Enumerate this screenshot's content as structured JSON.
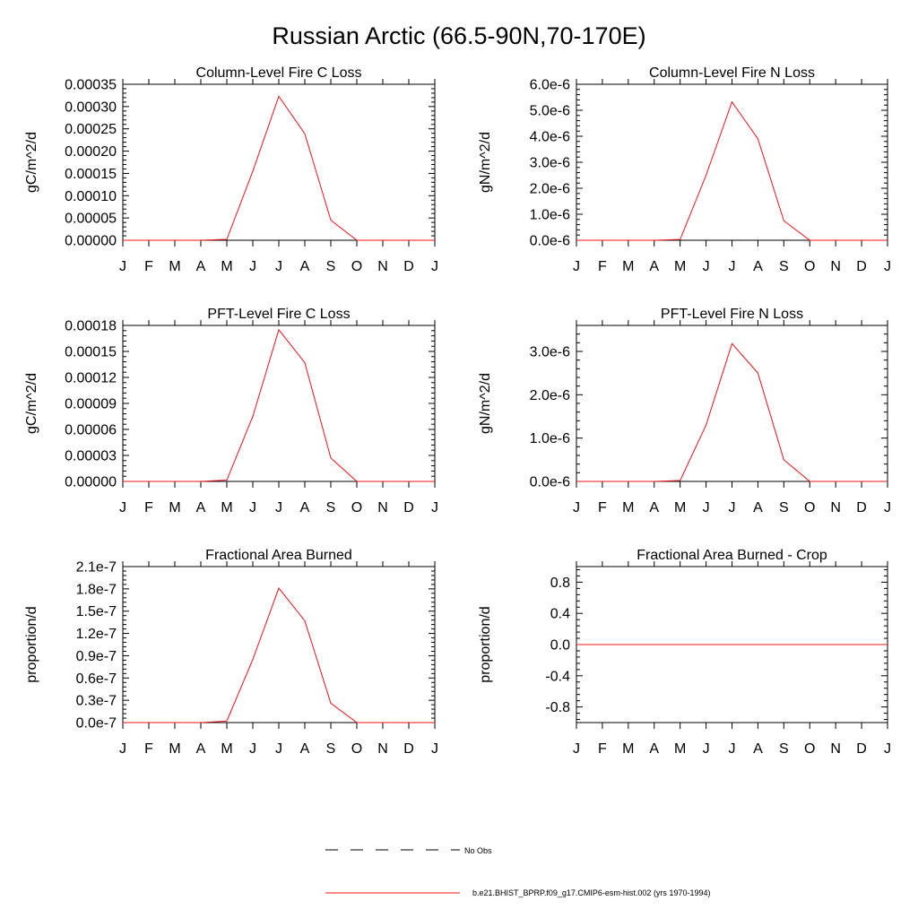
{
  "figure_title": "Russian Arctic (66.5-90N,70-170E)",
  "colors": {
    "series": "#e8141a",
    "axis": "#000000",
    "background": "#ffffff"
  },
  "legend": {
    "entries": [
      {
        "label": "No Obs",
        "style": "dashed",
        "color": "#000000"
      },
      {
        "label": "b.e21.BHIST_BPRP.f09_g17.CMIP6-esm-hist.002 (yrs 1970-1994)",
        "style": "solid",
        "color": "#e8141a"
      }
    ]
  },
  "chart_data": [
    {
      "type": "line",
      "title": "Column-Level Fire C Loss",
      "xlabel": "",
      "ylabel": "gC/m^2/d",
      "categories": [
        "J",
        "F",
        "M",
        "A",
        "M",
        "J",
        "J",
        "A",
        "S",
        "O",
        "N",
        "D",
        "J"
      ],
      "ylim": [
        0,
        0.00035
      ],
      "yticks": [
        0,
        5e-05,
        0.0001,
        0.00015,
        0.0002,
        0.00025,
        0.0003,
        0.00035
      ],
      "ytick_labels": [
        "0.00000",
        "0.00005",
        "0.00010",
        "0.00015",
        "0.00020",
        "0.00025",
        "0.00030",
        "0.00035"
      ],
      "series": [
        {
          "name": "b.e21.BHIST_BPRP.f09_g17.CMIP6-esm-hist.002 (yrs 1970-1994)",
          "values": [
            0,
            0,
            0,
            0,
            2e-06,
            0.000155,
            0.000323,
            0.000239,
            4.5e-05,
            0,
            0,
            0,
            0
          ]
        }
      ]
    },
    {
      "type": "line",
      "title": "Column-Level Fire N Loss",
      "xlabel": "",
      "ylabel": "gN/m^2/d",
      "categories": [
        "J",
        "F",
        "M",
        "A",
        "M",
        "J",
        "J",
        "A",
        "S",
        "O",
        "N",
        "D",
        "J"
      ],
      "ylim": [
        0,
        6e-06
      ],
      "yticks": [
        0,
        1e-06,
        2e-06,
        3e-06,
        4e-06,
        5e-06,
        6e-06
      ],
      "ytick_labels": [
        "0.0e-6",
        "1.0e-6",
        "2.0e-6",
        "3.0e-6",
        "4.0e-6",
        "5.0e-6",
        "6.0e-6"
      ],
      "series": [
        {
          "name": "b.e21.BHIST_BPRP.f09_g17.CMIP6-esm-hist.002 (yrs 1970-1994)",
          "values": [
            0,
            0,
            0,
            0,
            3e-08,
            2.5e-06,
            5.32e-06,
            3.9e-06,
            7.5e-07,
            0,
            0,
            0,
            0
          ]
        }
      ]
    },
    {
      "type": "line",
      "title": "PFT-Level Fire C Loss",
      "xlabel": "",
      "ylabel": "gC/m^2/d",
      "categories": [
        "J",
        "F",
        "M",
        "A",
        "M",
        "J",
        "J",
        "A",
        "S",
        "O",
        "N",
        "D",
        "J"
      ],
      "ylim": [
        0,
        0.00018
      ],
      "yticks": [
        0,
        3e-05,
        6e-05,
        9e-05,
        0.00012,
        0.00015,
        0.00018
      ],
      "ytick_labels": [
        "0.00000",
        "0.00003",
        "0.00006",
        "0.00009",
        "0.00012",
        "0.00015",
        "0.00018"
      ],
      "series": [
        {
          "name": "b.e21.BHIST_BPRP.f09_g17.CMIP6-esm-hist.002 (yrs 1970-1994)",
          "values": [
            0,
            0,
            0,
            0,
            1.5e-06,
            7.5e-05,
            0.000175,
            0.000137,
            2.7e-05,
            0,
            0,
            0,
            0
          ]
        }
      ]
    },
    {
      "type": "line",
      "title": "PFT-Level Fire N Loss",
      "xlabel": "",
      "ylabel": "gN/m^2/d",
      "categories": [
        "J",
        "F",
        "M",
        "A",
        "M",
        "J",
        "J",
        "A",
        "S",
        "O",
        "N",
        "D",
        "J"
      ],
      "ylim": [
        0,
        3.6e-06
      ],
      "yticks": [
        0,
        1e-06,
        2e-06,
        3e-06
      ],
      "ytick_labels": [
        "0.0e-6",
        "1.0e-6",
        "2.0e-6",
        "3.0e-6"
      ],
      "series": [
        {
          "name": "b.e21.BHIST_BPRP.f09_g17.CMIP6-esm-hist.002 (yrs 1970-1994)",
          "values": [
            0,
            0,
            0,
            0,
            2e-08,
            1.3e-06,
            3.18e-06,
            2.5e-06,
            5e-07,
            0,
            0,
            0,
            0
          ]
        }
      ]
    },
    {
      "type": "line",
      "title": "Fractional Area Burned",
      "xlabel": "",
      "ylabel": "proportion/d",
      "categories": [
        "J",
        "F",
        "M",
        "A",
        "M",
        "J",
        "J",
        "A",
        "S",
        "O",
        "N",
        "D",
        "J"
      ],
      "ylim": [
        0,
        2.1e-07
      ],
      "yticks": [
        0,
        3e-08,
        6e-08,
        9e-08,
        1.2e-07,
        1.5e-07,
        1.8e-07,
        2.1e-07
      ],
      "ytick_labels": [
        "0.0e-7",
        "0.3e-7",
        "0.6e-7",
        "0.9e-7",
        "1.2e-7",
        "1.5e-7",
        "1.8e-7",
        "2.1e-7"
      ],
      "series": [
        {
          "name": "b.e21.BHIST_BPRP.f09_g17.CMIP6-esm-hist.002 (yrs 1970-1994)",
          "values": [
            0,
            0,
            0,
            0,
            2e-09,
            8.5e-08,
            1.81e-07,
            1.37e-07,
            2.6e-08,
            0,
            0,
            0,
            0
          ]
        }
      ]
    },
    {
      "type": "line",
      "title": "Fractional Area Burned - Crop",
      "xlabel": "",
      "ylabel": "proportion/d",
      "categories": [
        "J",
        "F",
        "M",
        "A",
        "M",
        "J",
        "J",
        "A",
        "S",
        "O",
        "N",
        "D",
        "J"
      ],
      "ylim": [
        -1.0,
        1.0
      ],
      "yticks": [
        -0.8,
        -0.4,
        0.0,
        0.4,
        0.8
      ],
      "ytick_labels": [
        "-0.8",
        "-0.4",
        "0.0",
        "0.4",
        "0.8"
      ],
      "series": [
        {
          "name": "b.e21.BHIST_BPRP.f09_g17.CMIP6-esm-hist.002 (yrs 1970-1994)",
          "values": [
            0,
            0,
            0,
            0,
            0,
            0,
            0,
            0,
            0,
            0,
            0,
            0,
            0
          ]
        }
      ]
    }
  ]
}
